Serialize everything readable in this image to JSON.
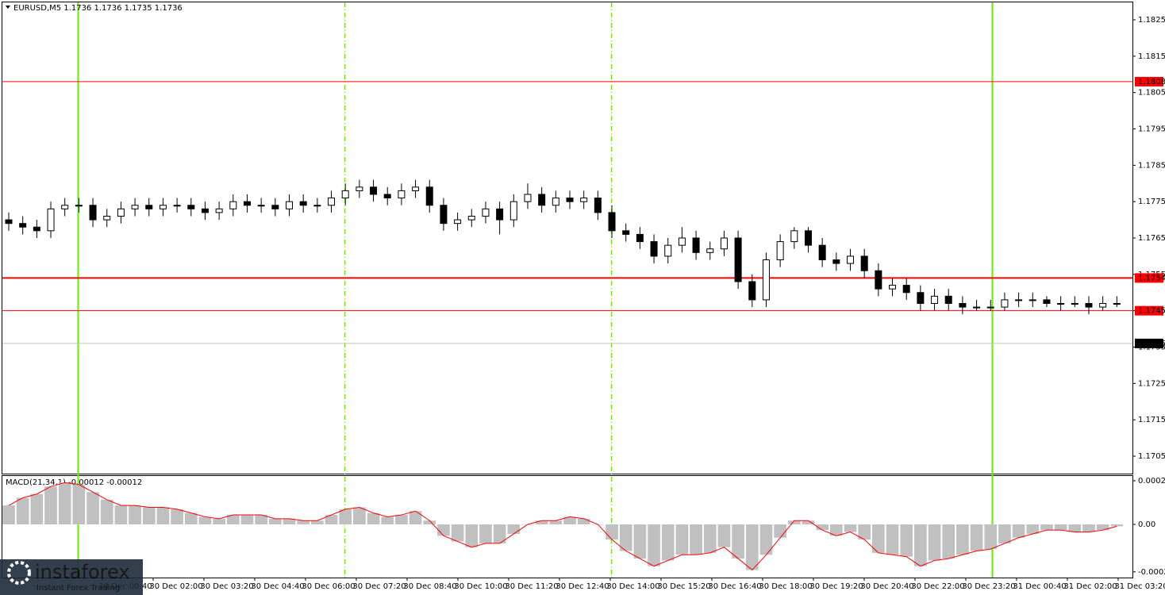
{
  "chart_data": {
    "type": "candlestick",
    "title": "EURUSD,M5  1.1736 1.1736 1.1735 1.1736",
    "open": [
      1.177,
      1.1769,
      1.1768,
      1.1767,
      1.1773,
      1.1774,
      1.1774,
      1.177,
      1.1771,
      1.1773,
      1.1774,
      1.1773,
      1.1774,
      1.1774,
      1.1773,
      1.1772,
      1.1773,
      1.1775,
      1.1774,
      1.1774,
      1.1773,
      1.1775,
      1.1774,
      1.1774,
      1.1776,
      1.1778,
      1.1779,
      1.1777,
      1.1776,
      1.1778,
      1.1779,
      1.1774,
      1.1769,
      1.177,
      1.1771,
      1.1773,
      1.177,
      1.1775,
      1.1777,
      1.1774,
      1.1776,
      1.1775,
      1.1776,
      1.1772,
      1.1767,
      1.1766,
      1.1764,
      1.176,
      1.1763,
      1.1765,
      1.1761,
      1.1762,
      1.1765,
      1.1753,
      1.1748,
      1.1759,
      1.1764,
      1.1767,
      1.1763,
      1.1759,
      1.1758,
      1.176,
      1.1756,
      1.1751,
      1.1752,
      1.175,
      1.1747,
      1.1749,
      1.1747,
      1.1746,
      1.1746,
      1.1746,
      1.1748,
      1.1748,
      1.1748,
      1.1747,
      1.1747,
      1.1747,
      1.1746,
      1.1747
    ],
    "high": [
      1.1772,
      1.1771,
      1.177,
      1.1775,
      1.1776,
      1.1776,
      1.1776,
      1.1773,
      1.1775,
      1.1776,
      1.1776,
      1.1776,
      1.1776,
      1.1776,
      1.1775,
      1.1775,
      1.1777,
      1.1777,
      1.1776,
      1.1776,
      1.1777,
      1.1777,
      1.1776,
      1.1778,
      1.178,
      1.1781,
      1.1781,
      1.1779,
      1.178,
      1.1781,
      1.1781,
      1.1776,
      1.1772,
      1.1773,
      1.1775,
      1.1775,
      1.1777,
      1.178,
      1.1779,
      1.1778,
      1.1778,
      1.1778,
      1.1778,
      1.1774,
      1.1769,
      1.1768,
      1.1766,
      1.1765,
      1.1768,
      1.1767,
      1.1764,
      1.1767,
      1.1767,
      1.1755,
      1.1761,
      1.1766,
      1.1768,
      1.1768,
      1.1765,
      1.1761,
      1.1762,
      1.1762,
      1.1758,
      1.1754,
      1.1754,
      1.1752,
      1.1751,
      1.1751,
      1.1749,
      1.1748,
      1.1748,
      1.175,
      1.175,
      1.175,
      1.1749,
      1.1749,
      1.1749,
      1.1749,
      1.1749,
      1.1749
    ],
    "low": [
      1.1767,
      1.1766,
      1.1765,
      1.1765,
      1.1771,
      1.1772,
      1.1768,
      1.1768,
      1.1769,
      1.1771,
      1.1771,
      1.1771,
      1.1772,
      1.1771,
      1.177,
      1.177,
      1.1771,
      1.1772,
      1.1772,
      1.1771,
      1.1771,
      1.1772,
      1.1772,
      1.1772,
      1.1774,
      1.1776,
      1.1775,
      1.1774,
      1.1774,
      1.1776,
      1.1772,
      1.1767,
      1.1767,
      1.1768,
      1.1769,
      1.1766,
      1.1768,
      1.1773,
      1.1772,
      1.1772,
      1.1773,
      1.1773,
      1.177,
      1.1765,
      1.1764,
      1.1762,
      1.1758,
      1.1758,
      1.1761,
      1.1759,
      1.1759,
      1.176,
      1.1751,
      1.1746,
      1.1746,
      1.1757,
      1.1762,
      1.1761,
      1.1757,
      1.1756,
      1.1756,
      1.1754,
      1.1749,
      1.1749,
      1.1748,
      1.1745,
      1.1745,
      1.1745,
      1.1744,
      1.1745,
      1.1745,
      1.1745,
      1.1746,
      1.1746,
      1.1746,
      1.1745,
      1.1746,
      1.1744,
      1.1745,
      1.1746
    ],
    "close": [
      1.1769,
      1.1768,
      1.1767,
      1.1773,
      1.1774,
      1.1774,
      1.177,
      1.1771,
      1.1773,
      1.1774,
      1.1773,
      1.1774,
      1.1774,
      1.1773,
      1.1772,
      1.1773,
      1.1775,
      1.1774,
      1.1774,
      1.1773,
      1.1775,
      1.1774,
      1.1774,
      1.1776,
      1.1778,
      1.1779,
      1.1777,
      1.1776,
      1.1778,
      1.1779,
      1.1774,
      1.1769,
      1.177,
      1.1771,
      1.1773,
      1.177,
      1.1775,
      1.1777,
      1.1774,
      1.1776,
      1.1775,
      1.1776,
      1.1772,
      1.1767,
      1.1766,
      1.1764,
      1.176,
      1.1763,
      1.1765,
      1.1761,
      1.1762,
      1.1765,
      1.1753,
      1.1748,
      1.1759,
      1.1764,
      1.1767,
      1.1763,
      1.1759,
      1.1758,
      1.176,
      1.1756,
      1.1751,
      1.1752,
      1.175,
      1.1747,
      1.1749,
      1.1747,
      1.1746,
      1.1746,
      1.1746,
      1.1748,
      1.1748,
      1.1748,
      1.1747,
      1.1747,
      1.1747,
      1.1746,
      1.1747,
      1.1747
    ],
    "up_color": "#ffffff",
    "down_color": "#000000",
    "ylim": [
      1.17002,
      1.18298
    ],
    "yticks": [
      1.1705,
      1.1715,
      1.1725,
      1.1735,
      1.1745,
      1.1755,
      1.1765,
      1.1775,
      1.1785,
      1.1795,
      1.1805,
      1.1815,
      1.1825
    ],
    "levels": [
      1.1808,
      1.1754,
      1.1745
    ],
    "level_widths": [
      1,
      2,
      1
    ],
    "level_color": "#ff0000",
    "price_line": 1.1736,
    "price_line_color": "#c0c0c0",
    "time_labels": [
      "30 Dec 00:40",
      "30 Dec 02:00",
      "30 Dec 03:20",
      "30 Dec 04:40",
      "30 Dec 06:00",
      "30 Dec 07:20",
      "30 Dec 08:40",
      "30 Dec 10:00",
      "30 Dec 11:20",
      "30 Dec 12:40",
      "30 Dec 14:00",
      "30 Dec 15:20",
      "30 Dec 16:40",
      "30 Dec 18:00",
      "30 Dec 19:20",
      "30 Dec 20:40",
      "30 Dec 22:00",
      "30 Dec 23:20",
      "31 Dec 00:40",
      "31 Dec 02:00",
      "31 Dec 03:20"
    ],
    "indicator": {
      "type": "macd",
      "label": "MACD(21,34,1) -0.00012 -0.00012",
      "values": [
        0.0001,
        0.00014,
        0.00016,
        0.0002,
        0.00022,
        0.00021,
        0.00017,
        0.00013,
        0.0001,
        0.0001,
        9e-05,
        9e-05,
        8e-05,
        6e-05,
        4e-05,
        3e-05,
        5e-05,
        5e-05,
        5e-05,
        3e-05,
        3e-05,
        2e-05,
        2e-05,
        5e-05,
        8e-05,
        9e-05,
        6e-05,
        4e-05,
        5e-05,
        7e-05,
        2e-05,
        -6e-05,
        -9e-05,
        -0.00012,
        -0.0001,
        -0.0001,
        -5e-05,
        0.0,
        2e-05,
        2e-05,
        4e-05,
        3e-05,
        0.0,
        -8e-05,
        -0.00014,
        -0.00018,
        -0.00022,
        -0.00019,
        -0.00016,
        -0.00016,
        -0.00015,
        -0.00012,
        -0.00018,
        -0.00024,
        -0.00016,
        -7e-05,
        2e-05,
        2e-05,
        -3e-05,
        -6e-05,
        -4e-05,
        -8e-05,
        -0.00015,
        -0.00016,
        -0.00017,
        -0.00022,
        -0.00019,
        -0.00018,
        -0.00016,
        -0.00014,
        -0.00013,
        -0.0001,
        -7e-05,
        -5e-05,
        -3e-05,
        -3e-05,
        -4e-05,
        -4e-05,
        -3e-05,
        -1e-05
      ],
      "ylim": [
        -0.00028,
        0.000255
      ],
      "yticks": [
        0.00023,
        {
          "value": 0,
          "label": "0.00"
        },
        -0.00025
      ],
      "bar_color": "#c0c0c0",
      "line_color": "#ff0000"
    }
  },
  "watermark": {
    "brand": "instaforex",
    "tagline": "Instant Forex Trading"
  }
}
